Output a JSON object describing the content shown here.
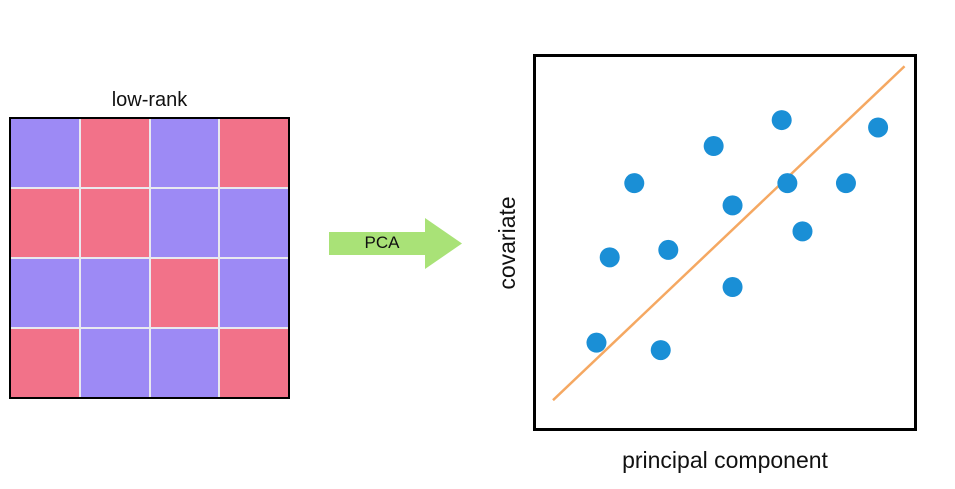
{
  "matrix": {
    "title": "low-rank",
    "colors": {
      "A": "#9d8af5",
      "B": "#f27289"
    },
    "cells": [
      [
        "A",
        "B",
        "A",
        "B"
      ],
      [
        "B",
        "B",
        "A",
        "A"
      ],
      [
        "A",
        "A",
        "B",
        "A"
      ],
      [
        "B",
        "A",
        "A",
        "B"
      ]
    ]
  },
  "arrow": {
    "label": "PCA",
    "color": "#a9e277"
  },
  "chart_data": {
    "type": "scatter",
    "xlabel": "principal component",
    "ylabel": "covariate",
    "xlim": [
      0,
      10
    ],
    "ylim": [
      0,
      10
    ],
    "point_color": "#1a8fd6",
    "line_color": "#f5a862",
    "points": [
      {
        "x": 1.6,
        "y": 2.3
      },
      {
        "x": 3.3,
        "y": 2.1
      },
      {
        "x": 1.95,
        "y": 4.6
      },
      {
        "x": 2.6,
        "y": 6.6
      },
      {
        "x": 3.5,
        "y": 4.8
      },
      {
        "x": 4.7,
        "y": 7.6
      },
      {
        "x": 5.2,
        "y": 6.0
      },
      {
        "x": 5.2,
        "y": 3.8
      },
      {
        "x": 6.5,
        "y": 8.3
      },
      {
        "x": 6.65,
        "y": 6.6
      },
      {
        "x": 7.05,
        "y": 5.3
      },
      {
        "x": 8.2,
        "y": 6.6
      },
      {
        "x": 9.05,
        "y": 8.1
      }
    ],
    "fit_line": [
      {
        "x": 0.45,
        "y": 0.75
      },
      {
        "x": 9.75,
        "y": 9.75
      }
    ]
  }
}
